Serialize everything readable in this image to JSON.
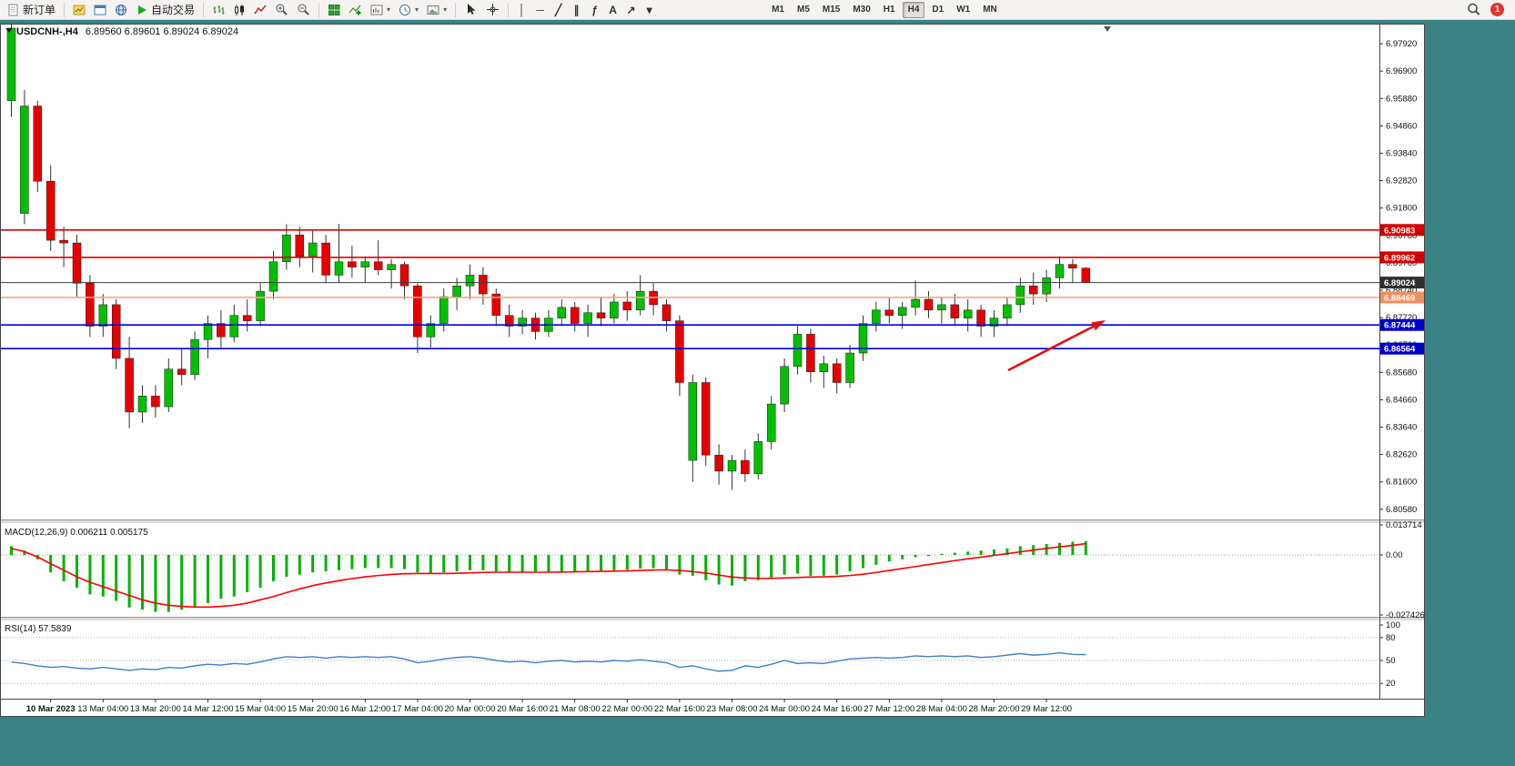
{
  "toolbar": {
    "new_order_label": "新订单",
    "autotrading_label": "自动交易",
    "timeframes": [
      "M1",
      "M5",
      "M15",
      "M30",
      "H1",
      "H4",
      "D1",
      "W1",
      "MN"
    ],
    "active_timeframe": "H4",
    "notification_count": "1",
    "glyph_icons": {
      "vline": "│",
      "hline": "─",
      "trendline": "╱",
      "channel": "∥",
      "fibonacci": "ƒ",
      "text": "A",
      "arrows": "↗",
      "more": "▾",
      "caret": "▾"
    }
  },
  "chart_data": {
    "type": "candlestick",
    "symbol": "USDCNH-",
    "timeframe": "H4",
    "header": {
      "symbol_period": "USDCNH-,H4",
      "open": "6.89560",
      "high": "6.89601",
      "low": "6.89024",
      "close": "6.89024"
    },
    "current_price": "6.89024",
    "price_axis_labels": [
      "6.97920",
      "6.96900",
      "6.95880",
      "6.94860",
      "6.93840",
      "6.92820",
      "6.91800",
      "6.90780",
      "6.89760",
      "6.88740",
      "6.87720",
      "6.86700",
      "6.85680",
      "6.84660",
      "6.83640",
      "6.82620",
      "6.81600",
      "6.80580"
    ],
    "time_axis_labels": [
      "10 Mar 2023",
      "13 Mar 04:00",
      "13 Mar 20:00",
      "14 Mar 12:00",
      "15 Mar 04:00",
      "15 Mar 20:00",
      "16 Mar 12:00",
      "17 Mar 04:00",
      "20 Mar 00:00",
      "20 Mar 16:00",
      "21 Mar 08:00",
      "22 Mar 00:00",
      "22 Mar 16:00",
      "23 Mar 08:00",
      "24 Mar 00:00",
      "24 Mar 16:00",
      "27 Mar 12:00",
      "28 Mar 04:00",
      "28 Mar 20:00",
      "29 Mar 12:00"
    ],
    "hlines": [
      {
        "value": 6.90983,
        "label": "6.90983",
        "color": "#e00000",
        "tag": "#d40000"
      },
      {
        "value": 6.89962,
        "label": "6.89962",
        "color": "#e00000",
        "tag": "#d40000"
      },
      {
        "value": 6.89024,
        "label": "6.89024",
        "color": "#3c3c3c",
        "tag": "#2f2f2f",
        "current": true
      },
      {
        "value": 6.88469,
        "label": "6.88469",
        "color": "#f4a582",
        "tag": "#ee9060"
      },
      {
        "value": 6.87444,
        "label": "6.87444",
        "color": "#0000e0",
        "tag": "#0000cc"
      },
      {
        "value": 6.86564,
        "label": "6.86564",
        "color": "#0000e0",
        "tag": "#0000cc"
      }
    ],
    "candles": [
      [
        6.958,
        6.99,
        6.952,
        6.985
      ],
      [
        6.916,
        6.962,
        6.912,
        6.956
      ],
      [
        6.956,
        6.958,
        6.924,
        6.928
      ],
      [
        6.928,
        6.934,
        6.902,
        6.906
      ],
      [
        6.906,
        6.911,
        6.896,
        6.905
      ],
      [
        6.905,
        6.908,
        6.885,
        6.89
      ],
      [
        6.89,
        6.893,
        6.87,
        6.874
      ],
      [
        6.874,
        6.886,
        6.87,
        6.882
      ],
      [
        6.882,
        6.884,
        6.858,
        6.862
      ],
      [
        6.862,
        6.87,
        6.836,
        6.842
      ],
      [
        6.842,
        6.852,
        6.838,
        6.848
      ],
      [
        6.848,
        6.852,
        6.84,
        6.844
      ],
      [
        6.844,
        6.862,
        6.842,
        6.858
      ],
      [
        6.858,
        6.866,
        6.852,
        6.856
      ],
      [
        6.856,
        6.872,
        6.854,
        6.869
      ],
      [
        6.869,
        6.878,
        6.862,
        6.875
      ],
      [
        6.875,
        6.88,
        6.866,
        6.87
      ],
      [
        6.87,
        6.882,
        6.868,
        6.878
      ],
      [
        6.878,
        6.884,
        6.872,
        6.876
      ],
      [
        6.876,
        6.89,
        6.874,
        6.887
      ],
      [
        6.887,
        6.902,
        6.884,
        6.898
      ],
      [
        6.898,
        6.912,
        6.895,
        6.908
      ],
      [
        6.908,
        6.911,
        6.896,
        6.9
      ],
      [
        6.9,
        6.91,
        6.894,
        6.905
      ],
      [
        6.905,
        6.908,
        6.89,
        6.893
      ],
      [
        6.893,
        6.912,
        6.89,
        6.898
      ],
      [
        6.898,
        6.904,
        6.892,
        6.896
      ],
      [
        6.896,
        6.9,
        6.89,
        6.898
      ],
      [
        6.898,
        6.906,
        6.893,
        6.895
      ],
      [
        6.895,
        6.899,
        6.888,
        6.897
      ],
      [
        6.897,
        6.898,
        6.884,
        6.889
      ],
      [
        6.889,
        6.89,
        6.864,
        6.87
      ],
      [
        6.87,
        6.878,
        6.866,
        6.875
      ],
      [
        6.875,
        6.888,
        6.872,
        6.885
      ],
      [
        6.885,
        6.892,
        6.88,
        6.889
      ],
      [
        6.889,
        6.897,
        6.884,
        6.893
      ],
      [
        6.893,
        6.896,
        6.882,
        6.886
      ],
      [
        6.886,
        6.888,
        6.874,
        6.878
      ],
      [
        6.878,
        6.882,
        6.87,
        6.874
      ],
      [
        6.874,
        6.88,
        6.871,
        6.877
      ],
      [
        6.877,
        6.879,
        6.869,
        6.872
      ],
      [
        6.872,
        6.88,
        6.87,
        6.877
      ],
      [
        6.877,
        6.884,
        6.874,
        6.881
      ],
      [
        6.881,
        6.883,
        6.872,
        6.875
      ],
      [
        6.875,
        6.882,
        6.87,
        6.879
      ],
      [
        6.879,
        6.885,
        6.874,
        6.877
      ],
      [
        6.877,
        6.886,
        6.875,
        6.883
      ],
      [
        6.883,
        6.887,
        6.876,
        6.88
      ],
      [
        6.88,
        6.893,
        6.878,
        6.887
      ],
      [
        6.887,
        6.89,
        6.878,
        6.882
      ],
      [
        6.882,
        6.884,
        6.872,
        6.876
      ],
      [
        6.876,
        6.878,
        6.848,
        6.853
      ],
      [
        6.824,
        6.856,
        6.816,
        6.853
      ],
      [
        6.853,
        6.855,
        6.822,
        6.826
      ],
      [
        6.826,
        6.83,
        6.815,
        6.82
      ],
      [
        6.82,
        6.826,
        6.813,
        6.824
      ],
      [
        6.824,
        6.828,
        6.816,
        6.819
      ],
      [
        6.819,
        6.834,
        6.817,
        6.831
      ],
      [
        6.831,
        6.848,
        6.828,
        6.845
      ],
      [
        6.845,
        6.862,
        6.842,
        6.859
      ],
      [
        6.859,
        6.874,
        6.856,
        6.871
      ],
      [
        6.871,
        6.873,
        6.853,
        6.857
      ],
      [
        6.857,
        6.863,
        6.851,
        6.86
      ],
      [
        6.86,
        6.862,
        6.849,
        6.853
      ],
      [
        6.853,
        6.867,
        6.851,
        6.864
      ],
      [
        6.864,
        6.878,
        6.861,
        6.875
      ],
      [
        6.875,
        6.883,
        6.872,
        6.88
      ],
      [
        6.88,
        6.885,
        6.875,
        6.878
      ],
      [
        6.878,
        6.883,
        6.873,
        6.881
      ],
      [
        6.881,
        6.891,
        6.878,
        6.884
      ],
      [
        6.884,
        6.887,
        6.877,
        6.88
      ],
      [
        6.88,
        6.885,
        6.875,
        6.882
      ],
      [
        6.882,
        6.886,
        6.874,
        6.877
      ],
      [
        6.877,
        6.884,
        6.872,
        6.88
      ],
      [
        6.88,
        6.882,
        6.87,
        6.874
      ],
      [
        6.874,
        6.88,
        6.87,
        6.877
      ],
      [
        6.877,
        6.885,
        6.874,
        6.882
      ],
      [
        6.882,
        6.892,
        6.879,
        6.889
      ],
      [
        6.889,
        6.894,
        6.882,
        6.886
      ],
      [
        6.886,
        6.895,
        6.883,
        6.892
      ],
      [
        6.892,
        6.9,
        6.888,
        6.897
      ],
      [
        6.897,
        6.899,
        6.89,
        6.8956
      ],
      [
        6.8956,
        6.89601,
        6.89024,
        6.89024
      ]
    ],
    "macd": {
      "label": "MACD(12,26,9)",
      "value_macd": "0.006211",
      "value_signal": "0.005175",
      "axis_max": "0.013714",
      "axis_zero": "0.00",
      "axis_min": "-0.027426",
      "histogram": [
        0.004,
        0.002,
        -0.002,
        -0.008,
        -0.012,
        -0.015,
        -0.018,
        -0.019,
        -0.021,
        -0.024,
        -0.025,
        -0.026,
        -0.026,
        -0.025,
        -0.024,
        -0.022,
        -0.02,
        -0.019,
        -0.017,
        -0.015,
        -0.012,
        -0.01,
        -0.009,
        -0.008,
        -0.0075,
        -0.007,
        -0.0065,
        -0.006,
        -0.006,
        -0.006,
        -0.0065,
        -0.008,
        -0.0085,
        -0.008,
        -0.0075,
        -0.007,
        -0.007,
        -0.0075,
        -0.008,
        -0.008,
        -0.008,
        -0.0078,
        -0.0075,
        -0.0075,
        -0.0072,
        -0.0072,
        -0.007,
        -0.0068,
        -0.0062,
        -0.006,
        -0.0065,
        -0.009,
        -0.0095,
        -0.0115,
        -0.0135,
        -0.014,
        -0.012,
        -0.0115,
        -0.0105,
        -0.009,
        -0.0085,
        -0.0095,
        -0.0095,
        -0.009,
        -0.0075,
        -0.006,
        -0.0045,
        -0.003,
        -0.002,
        -0.001,
        -0.0005,
        0.0005,
        0.001,
        0.0015,
        0.002,
        0.0025,
        0.003,
        0.004,
        0.0045,
        0.005,
        0.0055,
        0.006,
        0.006211
      ],
      "signal": [
        0.003,
        0.0015,
        -0.001,
        -0.004,
        -0.007,
        -0.01,
        -0.0125,
        -0.0145,
        -0.0165,
        -0.0185,
        -0.0205,
        -0.022,
        -0.023,
        -0.0235,
        -0.0238,
        -0.0238,
        -0.0235,
        -0.023,
        -0.022,
        -0.0205,
        -0.019,
        -0.0172,
        -0.0155,
        -0.014,
        -0.0128,
        -0.0117,
        -0.0108,
        -0.01,
        -0.0094,
        -0.0089,
        -0.0086,
        -0.0085,
        -0.0085,
        -0.0085,
        -0.0084,
        -0.0082,
        -0.008,
        -0.0079,
        -0.0079,
        -0.0079,
        -0.0079,
        -0.0079,
        -0.0078,
        -0.0077,
        -0.0076,
        -0.0075,
        -0.0074,
        -0.0073,
        -0.0071,
        -0.0069,
        -0.0068,
        -0.0071,
        -0.0076,
        -0.0083,
        -0.0092,
        -0.0101,
        -0.0105,
        -0.0107,
        -0.0107,
        -0.0105,
        -0.0103,
        -0.0101,
        -0.01,
        -0.0098,
        -0.0094,
        -0.0088,
        -0.008,
        -0.0071,
        -0.0062,
        -0.0053,
        -0.0044,
        -0.0035,
        -0.0026,
        -0.0018,
        -0.001,
        -0.0002,
        0.0006,
        0.0014,
        0.0022,
        0.003,
        0.0037,
        0.0044,
        0.005175
      ]
    },
    "rsi": {
      "label": "RSI(14)",
      "value": "57.5839",
      "levels": [
        "100",
        "80",
        "50",
        "20"
      ],
      "values": [
        48,
        46,
        43,
        41,
        42,
        40,
        39,
        41,
        39,
        37,
        39,
        38,
        41,
        40,
        43,
        45,
        44,
        46,
        45,
        48,
        52,
        55,
        54,
        55,
        53,
        55,
        54,
        55,
        54,
        55,
        52,
        47,
        49,
        52,
        54,
        55,
        53,
        50,
        48,
        49,
        47,
        49,
        50,
        48,
        49,
        48,
        50,
        49,
        51,
        49,
        47,
        41,
        43,
        39,
        36,
        37,
        43,
        41,
        45,
        50,
        46,
        47,
        46,
        49,
        52,
        53,
        54,
        53,
        54,
        56,
        55,
        56,
        55,
        56,
        54,
        55,
        57,
        59,
        57,
        58,
        60,
        58,
        57.58
      ]
    },
    "arrow_annotation": {
      "from": [
        1108,
        381
      ],
      "to": [
        1215,
        326
      ],
      "color": "#e01010"
    },
    "colors": {
      "up": "#00c000",
      "down": "#e80000",
      "wick": "#333333",
      "macd_histogram": "#00b300",
      "macd_signal": "#ff0000",
      "rsi_line": "#4080c8",
      "background": "#ffffff",
      "workspace": "#3a8284"
    }
  }
}
